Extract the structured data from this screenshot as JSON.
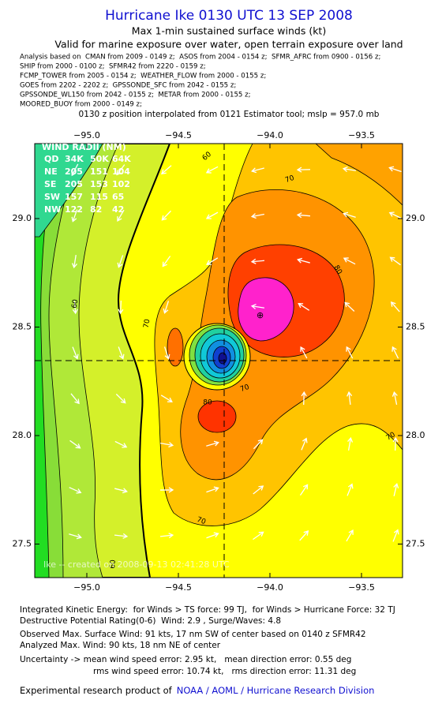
{
  "header": {
    "title": "Hurricane Ike 0130 UTC 13 SEP 2008",
    "subtitle": "Max 1-min sustained surface winds (kt)",
    "validity": "Valid for marine exposure over water, open terrain exposure over land",
    "analysis_sources": [
      "Analysis based on  CMAN from 2009 - 0149 z;  ASOS from 2004 - 0154 z;  SFMR_AFRC from 0900 - 0156 z;",
      "SHIP from 2000 - 0100 z;  SFMR42 from 2220 - 0159 z;",
      "FCMP_TOWER from 2005 - 0154 z;  WEATHER_FLOW from 2000 - 0155 z;",
      "GOES from 2202 - 2202 z;  GPSSONDE_SFC from 2042 - 0155 z;",
      "GPSSONDE_WL150 from 2042 - 0155 z;  METAR from 2000 - 0155 z;",
      "MOORED_BUOY from 2000 - 0149 z;"
    ],
    "position_note": "0130 z position interpolated from 0121 Estimator tool; mslp = 957.0 mb"
  },
  "map": {
    "lon_ticks": [
      {
        "value": -95,
        "label": "−95.0"
      },
      {
        "value": -94.5,
        "label": "−94.5"
      },
      {
        "value": -94,
        "label": "−94.0"
      },
      {
        "value": -93.5,
        "label": "−93.5"
      }
    ],
    "lat_ticks": [
      {
        "value": 29,
        "label": "29.0"
      },
      28.5,
      {
        "value": 28,
        "label": "28.0"
      },
      27.5
    ],
    "wind_radii": {
      "heading": "WIND RADII (NM)",
      "columns": [
        "QD",
        "34K",
        "50K",
        "64K"
      ],
      "rows": [
        [
          "NE",
          205,
          151,
          104
        ],
        [
          "SE",
          205,
          153,
          102
        ],
        [
          "SW",
          157,
          115,
          65
        ],
        [
          "NW",
          122,
          82,
          42
        ]
      ]
    },
    "contour_labels": [
      60,
      60,
      70,
      70,
      80,
      70,
      80,
      70,
      70,
      60
    ],
    "watermark": "Ike -- created on 2008-09-13 02:41:28 UTC"
  },
  "footer": {
    "lines": [
      "Integrated Kinetic Energy:  for Winds > TS force: 99 TJ,  for Winds > Hurricane Force: 32 TJ",
      "Destructive Potential Rating(0-6)  Wind: 2.9 , Surge/Waves: 4.8",
      "Observed Max. Surface Wind: 91 kts, 17 nm SW of center based on 0140 z SFMR42",
      "Analyzed Max. Wind: 90 kts, 18 nm NE of center",
      "Uncertainty -> mean wind speed error: 2.95 kt,   mean direction error: 0.55 deg",
      "rms wind speed error: 10.74 kt,   rms direction error: 11.31 deg"
    ],
    "credit": "Experimental research product of",
    "credit_link": "NOAA / AOML / Hurricane Research Division"
  }
}
